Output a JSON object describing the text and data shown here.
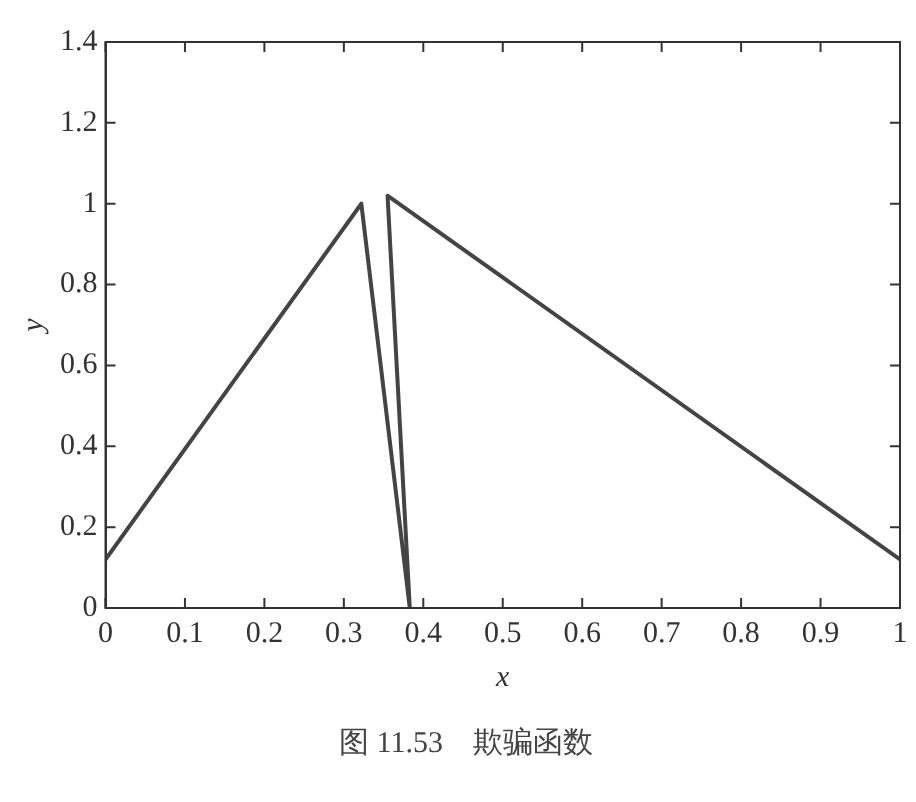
{
  "chart_data": {
    "type": "line",
    "xlabel": "x",
    "ylabel": "y",
    "series": [
      {
        "color": "#444444",
        "x": [
          0,
          0.322,
          0.383,
          0.355,
          1
        ],
        "values": [
          0.12,
          1.0,
          0,
          1.02,
          0.12
        ]
      }
    ],
    "xlim": [
      0,
      1
    ],
    "xticks": [
      0,
      0.1,
      0.2,
      0.3,
      0.4,
      0.5,
      0.6,
      0.7,
      0.8,
      0.9,
      1
    ],
    "ylim": [
      0,
      1.4
    ],
    "yticks": [
      0,
      0.2,
      0.4,
      0.6,
      0.8,
      1,
      1.2,
      1.4
    ],
    "grid": false,
    "legend": false,
    "marker": "none",
    "line_style": "solid",
    "annotations": [
      "图 11.53　欺骗函数"
    ]
  }
}
